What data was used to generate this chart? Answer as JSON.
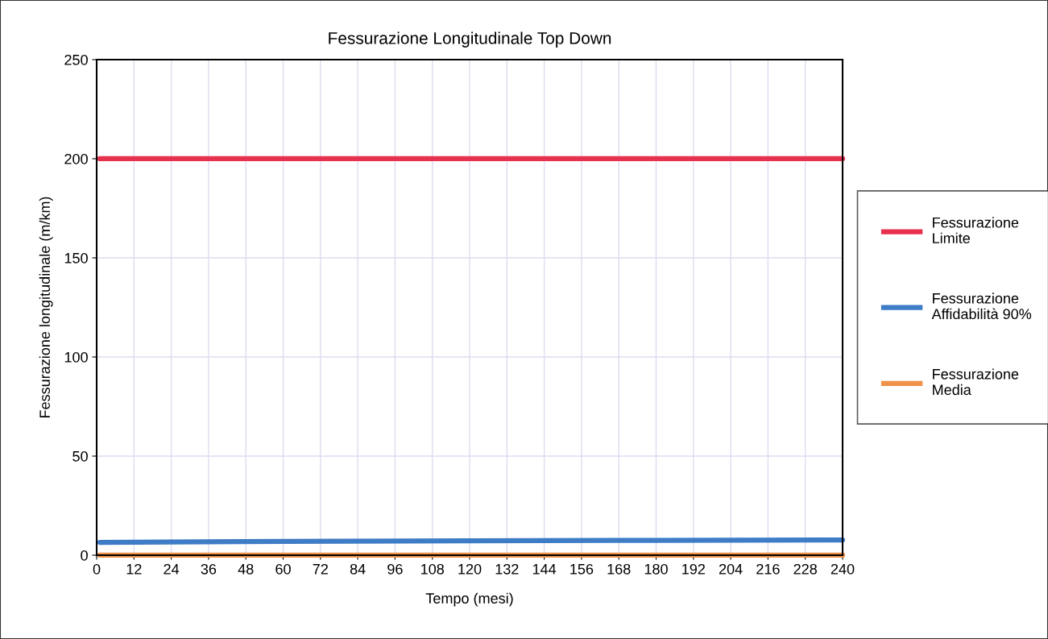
{
  "chart_data": {
    "type": "line",
    "title": "Fessurazione Longitudinale Top Down",
    "xlabel": "Tempo (mesi)",
    "ylabel": "Fessurazione longitudinale (m/km)",
    "x": [
      1,
      60,
      120,
      180,
      240
    ],
    "series": [
      {
        "name": "Fessurazione\nLimite",
        "color": "#e8304f",
        "values": [
          200,
          200,
          200,
          200,
          200
        ]
      },
      {
        "name": "Fessurazione\nAffidabilità 90%",
        "color": "#3f7cc6",
        "values": [
          6.5,
          7.0,
          7.3,
          7.5,
          7.7
        ]
      },
      {
        "name": "Fessurazione\nMedia",
        "color": "#f0914a",
        "values": [
          0,
          0,
          0,
          0,
          0
        ]
      }
    ],
    "xlim": [
      0,
      240
    ],
    "xticks": [
      0,
      12,
      24,
      36,
      48,
      60,
      72,
      84,
      96,
      108,
      120,
      132,
      144,
      156,
      168,
      180,
      192,
      204,
      216,
      228,
      240
    ],
    "ylim": [
      0,
      250
    ],
    "yticks": [
      0,
      50,
      100,
      150,
      200,
      250
    ],
    "grid": true,
    "legend": "right",
    "marker": "none",
    "line_style": "solid"
  }
}
